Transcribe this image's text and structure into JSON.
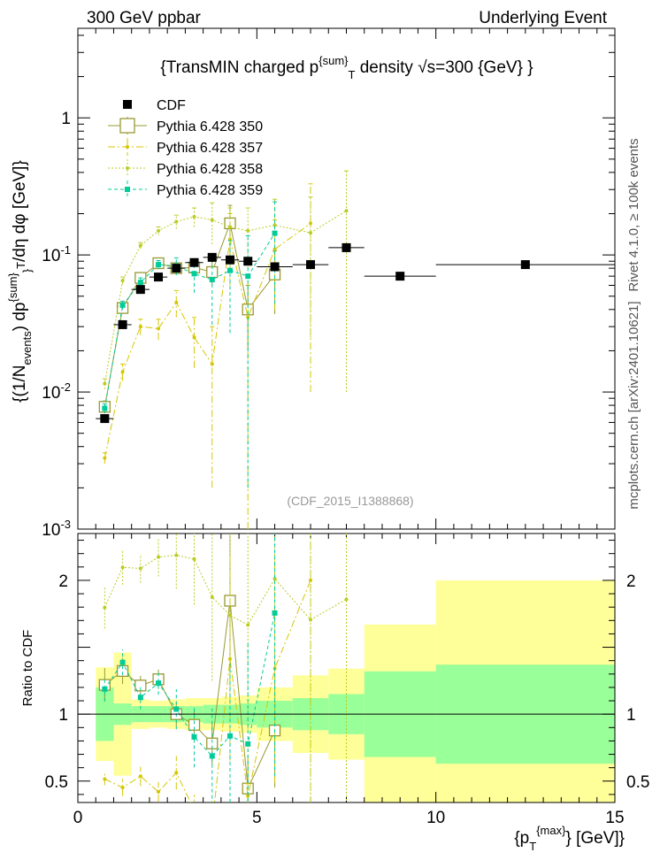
{
  "header": {
    "left": "300 GeV ppbar",
    "right": "Underlying Event"
  },
  "side_labels": {
    "rivet": "Rivet 4.1.0, ≥ 100k events",
    "mcplots": "mcplots.cern.ch [arXiv:2401.10621]"
  },
  "chart_data": {
    "type": "scatter",
    "title": "{TransMIN charged p^{sum}_T density √s=300 {GeV} }",
    "watermark": "(CDF_2015_I1388868)",
    "xlabel": "{p_T^{max}} [GeV]}",
    "ylabel": "{(1/N_events) dp^{sum}_T/dη dφ [GeV]}",
    "ratio_ylabel": "Ratio to CDF",
    "xlim": [
      0,
      15
    ],
    "ylim": [
      0.001,
      4.5
    ],
    "ylog": true,
    "ratio_ylim": [
      0.34,
      2.35
    ],
    "x_ticks": [
      "0",
      "5",
      "10",
      "15"
    ],
    "y_ticks": [
      "10^{-3}",
      "10^{-2}",
      "10^{-1}",
      "1"
    ],
    "ratio_ticks": [
      "0.5",
      "1",
      "2"
    ],
    "legend_position": "top-left",
    "reference": {
      "name": "CDF",
      "x": [
        0.75,
        1.25,
        1.75,
        2.25,
        2.75,
        3.25,
        3.75,
        4.25,
        4.75,
        5.5,
        6.5,
        7.5,
        9.0,
        12.5
      ],
      "xerr": [
        0.25,
        0.25,
        0.25,
        0.25,
        0.25,
        0.25,
        0.25,
        0.25,
        0.25,
        0.5,
        0.5,
        0.5,
        1.0,
        2.5
      ],
      "y": [
        0.0064,
        0.031,
        0.056,
        0.069,
        0.08,
        0.088,
        0.096,
        0.092,
        0.09,
        0.082,
        0.085,
        0.113,
        0.07,
        0.085
      ],
      "band_inner": [
        0.2,
        0.08,
        0.06,
        0.06,
        0.06,
        0.06,
        0.07,
        0.07,
        0.08,
        0.1,
        0.12,
        0.15,
        0.32,
        0.37
      ],
      "band_outer": [
        0.35,
        0.46,
        0.11,
        0.1,
        0.11,
        0.12,
        0.12,
        0.13,
        0.14,
        0.2,
        0.29,
        0.34,
        0.67,
        1.0
      ]
    },
    "series": [
      {
        "name": "Pythia 6.428 350",
        "color": "#999933",
        "marker": "open-square",
        "dash": "",
        "x": [
          0.75,
          1.25,
          1.75,
          2.25,
          2.75,
          3.25,
          3.75,
          4.25,
          4.75,
          5.5
        ],
        "y": [
          0.0078,
          0.041,
          0.068,
          0.087,
          0.08,
          0.081,
          0.075,
          0.17,
          0.04,
          0.072
        ],
        "yerr": [
          0.0008,
          0.003,
          0.004,
          0.005,
          0.007,
          0.01,
          0.015,
          0.06,
          0.02,
          0.035
        ]
      },
      {
        "name": "Pythia 6.428 357",
        "color": "#d6c600",
        "marker": "small-dot",
        "dash": "8,3,2,3",
        "x": [
          0.75,
          1.25,
          1.75,
          2.25,
          2.75,
          3.25,
          3.75,
          4.25,
          4.75,
          5.5,
          6.5
        ],
        "y": [
          0.0033,
          0.014,
          0.03,
          0.029,
          0.045,
          0.025,
          0.016,
          0.13,
          0.035,
          0.11,
          0.17
        ],
        "yerr": [
          0.0003,
          0.002,
          0.004,
          0.005,
          0.01,
          0.01,
          0.014,
          0.07,
          0.034,
          0.07,
          0.16
        ]
      },
      {
        "name": "Pythia 6.428 358",
        "color": "#bbcc22",
        "marker": "small-dot",
        "dash": "2,2",
        "x": [
          0.75,
          1.25,
          1.75,
          2.25,
          2.75,
          3.25,
          3.75,
          4.25,
          4.75,
          5.5,
          6.5,
          7.5
        ],
        "y": [
          0.0115,
          0.065,
          0.117,
          0.15,
          0.175,
          0.19,
          0.18,
          0.16,
          0.15,
          0.165,
          0.145,
          0.21
        ],
        "yerr": [
          0.001,
          0.004,
          0.006,
          0.01,
          0.02,
          0.03,
          0.06,
          0.06,
          0.07,
          0.09,
          0.12,
          0.2
        ]
      },
      {
        "name": "Pythia 6.428 359",
        "color": "#00cc99",
        "marker": "filled-square-small",
        "dash": "4,3",
        "x": [
          0.75,
          1.25,
          1.75,
          2.25,
          2.75,
          3.25,
          3.75,
          4.25,
          4.75,
          5.5
        ],
        "y": [
          0.0076,
          0.043,
          0.063,
          0.085,
          0.083,
          0.073,
          0.066,
          0.077,
          0.07,
          0.144
        ],
        "yerr": [
          0.0006,
          0.003,
          0.005,
          0.006,
          0.012,
          0.02,
          0.035,
          0.05,
          0.068,
          0.1
        ]
      }
    ]
  }
}
